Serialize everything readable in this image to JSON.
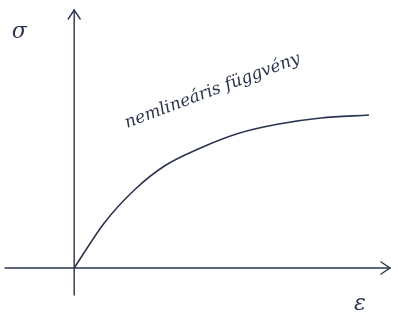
{
  "chart_data": {
    "type": "line",
    "x_label": "ε",
    "y_label": "σ",
    "annotation": "nemlineáris függvény",
    "x": [
      0,
      1,
      2,
      3,
      4.2,
      5.5,
      6.8,
      8.2,
      9.8
    ],
    "values": [
      0,
      1.5,
      2.6,
      3.4,
      4.0,
      4.5,
      4.8,
      5.0,
      5.1
    ],
    "color": "#2b3350",
    "xlim": [
      -2.3,
      10.5
    ],
    "ylim": [
      -0.9,
      8.6
    ],
    "tick_labels": false,
    "grid": false
  }
}
